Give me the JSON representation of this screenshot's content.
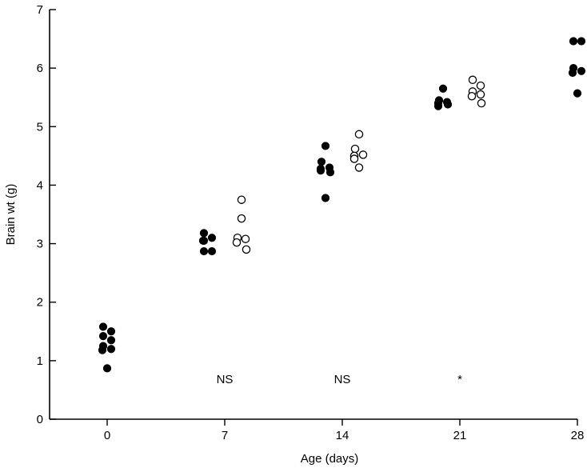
{
  "chart_data": {
    "type": "scatter",
    "xlabel": "Age (days)",
    "ylabel": "Brain wt (g)",
    "xlim": [
      -4,
      28
    ],
    "ylim": [
      0,
      7
    ],
    "x_ticks": [
      "0",
      "7",
      "14",
      "21",
      "28"
    ],
    "y_ticks": [
      "0",
      "1",
      "2",
      "3",
      "4",
      "5",
      "6",
      "7"
    ],
    "series": [
      {
        "marker": "filled-circle",
        "points": [
          {
            "x": 0,
            "y": 1.58
          },
          {
            "x": 0,
            "y": 1.5
          },
          {
            "x": 0,
            "y": 1.42
          },
          {
            "x": 0,
            "y": 1.35
          },
          {
            "x": 0,
            "y": 1.25
          },
          {
            "x": 0,
            "y": 1.2
          },
          {
            "x": 0,
            "y": 1.18
          },
          {
            "x": 0,
            "y": 0.87
          },
          {
            "x": 6,
            "y": 3.18
          },
          {
            "x": 6,
            "y": 3.1
          },
          {
            "x": 6,
            "y": 3.05
          },
          {
            "x": 6,
            "y": 3.05
          },
          {
            "x": 6,
            "y": 2.87
          },
          {
            "x": 6,
            "y": 2.87
          },
          {
            "x": 13,
            "y": 4.67
          },
          {
            "x": 13,
            "y": 4.4
          },
          {
            "x": 13,
            "y": 4.3
          },
          {
            "x": 13,
            "y": 4.28
          },
          {
            "x": 13,
            "y": 4.25
          },
          {
            "x": 13,
            "y": 4.22
          },
          {
            "x": 13,
            "y": 3.78
          },
          {
            "x": 20,
            "y": 5.65
          },
          {
            "x": 20,
            "y": 5.45
          },
          {
            "x": 20,
            "y": 5.42
          },
          {
            "x": 20,
            "y": 5.4
          },
          {
            "x": 20,
            "y": 5.38
          },
          {
            "x": 20,
            "y": 5.35
          },
          {
            "x": 28,
            "y": 6.46
          },
          {
            "x": 28,
            "y": 6.46
          },
          {
            "x": 28,
            "y": 6.0
          },
          {
            "x": 28,
            "y": 5.95
          },
          {
            "x": 28,
            "y": 5.92
          },
          {
            "x": 28,
            "y": 5.57
          }
        ]
      },
      {
        "marker": "open-circle",
        "points": [
          {
            "x": 8,
            "y": 3.75
          },
          {
            "x": 8,
            "y": 3.43
          },
          {
            "x": 8,
            "y": 3.1
          },
          {
            "x": 8,
            "y": 3.08
          },
          {
            "x": 8,
            "y": 3.02
          },
          {
            "x": 8,
            "y": 2.9
          },
          {
            "x": 15,
            "y": 4.87
          },
          {
            "x": 15,
            "y": 4.62
          },
          {
            "x": 15,
            "y": 4.52
          },
          {
            "x": 15,
            "y": 4.5
          },
          {
            "x": 15,
            "y": 4.45
          },
          {
            "x": 15,
            "y": 4.3
          },
          {
            "x": 22,
            "y": 5.8
          },
          {
            "x": 22,
            "y": 5.7
          },
          {
            "x": 22,
            "y": 5.6
          },
          {
            "x": 22,
            "y": 5.55
          },
          {
            "x": 22,
            "y": 5.52
          },
          {
            "x": 22,
            "y": 5.4
          }
        ]
      }
    ],
    "annotations": [
      {
        "text": "NS",
        "x": 7,
        "y": 0.7
      },
      {
        "text": "NS",
        "x": 14,
        "y": 0.7
      },
      {
        "text": "*",
        "x": 21,
        "y": 0.7
      }
    ],
    "grid": false,
    "legend": "none"
  }
}
